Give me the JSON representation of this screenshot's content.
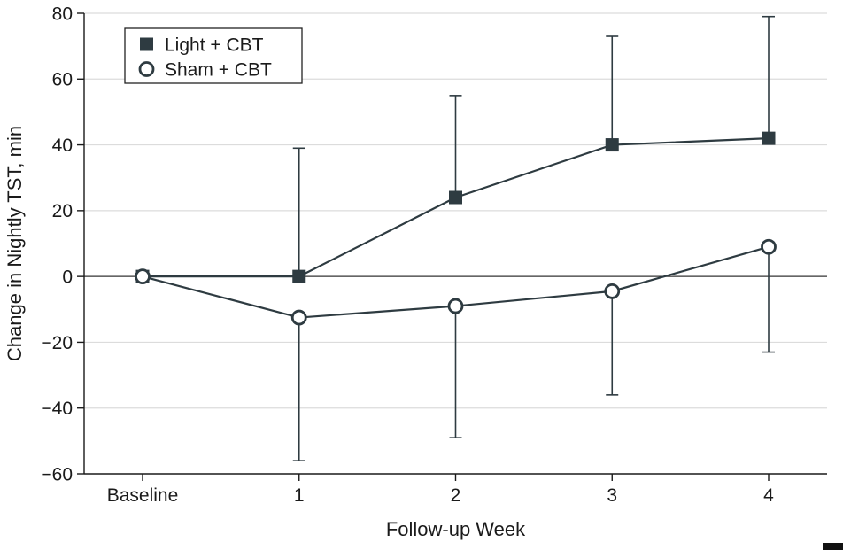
{
  "figure": {
    "xlabel": "Follow-up Week",
    "ylabel": "Change in Nightly TST, min"
  },
  "chart_data": {
    "type": "line",
    "title": "",
    "xlabel": "Follow-up Week",
    "ylabel": "Change in Nightly TST, min",
    "x_categories": [
      "Baseline",
      "1",
      "2",
      "3",
      "4"
    ],
    "ylim": [
      -60,
      80
    ],
    "yticks": [
      80,
      60,
      40,
      20,
      0,
      -20,
      -40,
      -60
    ],
    "ytick_labels": [
      "80",
      "60",
      "40",
      "20",
      "0",
      "−20",
      "−40",
      "−60"
    ],
    "grid": "horizontal-light-gridlines",
    "zero_line": true,
    "legend": {
      "position": "top-left-inside",
      "items": [
        {
          "label": "Light + CBT",
          "marker": "filled-square"
        },
        {
          "label": "Sham + CBT",
          "marker": "open-circle"
        }
      ]
    },
    "series": [
      {
        "name": "Light + CBT",
        "marker": "filled-square",
        "values": [
          0,
          0,
          24,
          40,
          42
        ],
        "error_upper": [
          null,
          39,
          55,
          73,
          79
        ],
        "error_lower": [
          null,
          null,
          null,
          null,
          null
        ]
      },
      {
        "name": "Sham + CBT",
        "marker": "open-circle",
        "values": [
          0,
          -12.5,
          -9,
          -4.5,
          9
        ],
        "error_upper": [
          null,
          null,
          null,
          null,
          null
        ],
        "error_lower": [
          null,
          -56,
          -49,
          -36,
          -23
        ]
      }
    ],
    "colors": {
      "series": "#2e3b41",
      "grid": "#dcdcdc",
      "axis": "#1a1a1a",
      "zero_line": "#333333",
      "text": "#1a1a1a",
      "background": "#ffffff",
      "open_marker_fill": "#ffffff"
    }
  }
}
